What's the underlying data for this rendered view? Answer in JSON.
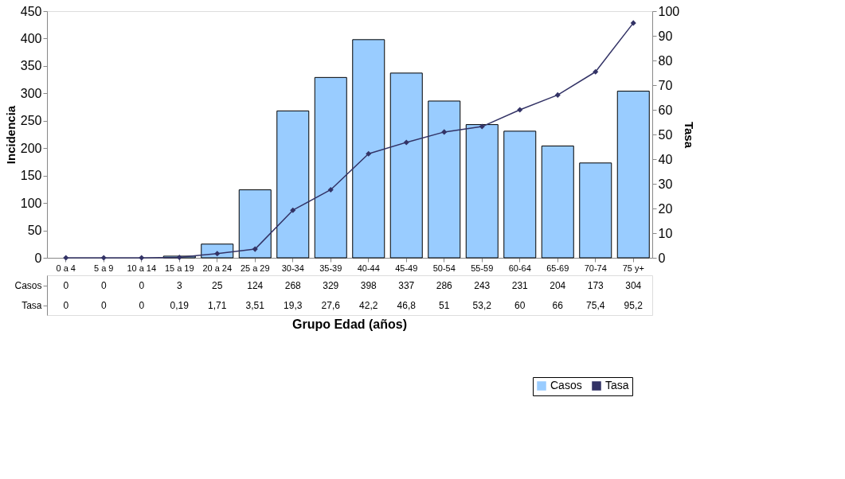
{
  "chart_data": {
    "type": "bar",
    "xlabel": "Grupo Edad (años)",
    "ylabel": "Incidencia",
    "y2label": "Tasa",
    "categories": [
      "0 a 4",
      "5 a 9",
      "10 a 14",
      "15 a 19",
      "20 a 24",
      "25 a 29",
      "30-34",
      "35-39",
      "40-44",
      "45-49",
      "50-54",
      "55-59",
      "60-64",
      "65-69",
      "70-74",
      "75 y+"
    ],
    "series": [
      {
        "name": "Casos",
        "color": "#99ccff",
        "values": [
          0,
          0,
          0,
          3,
          25,
          124,
          268,
          329,
          398,
          337,
          286,
          243,
          231,
          204,
          173,
          304
        ],
        "value_labels": [
          "0",
          "0",
          "0",
          "3",
          "25",
          "124",
          "268",
          "329",
          "398",
          "337",
          "286",
          "243",
          "231",
          "204",
          "173",
          "304"
        ]
      },
      {
        "name": "Tasa",
        "type": "line",
        "axis": "y2",
        "color": "#333366",
        "marker": "diamond",
        "values": [
          0,
          0,
          0,
          0.19,
          1.71,
          3.51,
          19.3,
          27.6,
          42.2,
          46.8,
          51,
          53.2,
          60,
          66,
          75.4,
          95.2
        ],
        "value_labels": [
          "0",
          "0",
          "0",
          "0,19",
          "1,71",
          "3,51",
          "19,3",
          "27,6",
          "42,2",
          "46,8",
          "51",
          "53,2",
          "60",
          "66",
          "75,4",
          "95,2"
        ]
      }
    ],
    "ylim": [
      0,
      450
    ],
    "yticks": [
      0,
      50,
      100,
      150,
      200,
      250,
      300,
      350,
      400,
      450
    ],
    "y2lim": [
      0,
      100
    ],
    "y2ticks": [
      0,
      10,
      20,
      30,
      40,
      50,
      60,
      70,
      80,
      90,
      100
    ],
    "grid": false,
    "legend": "bottom right"
  }
}
